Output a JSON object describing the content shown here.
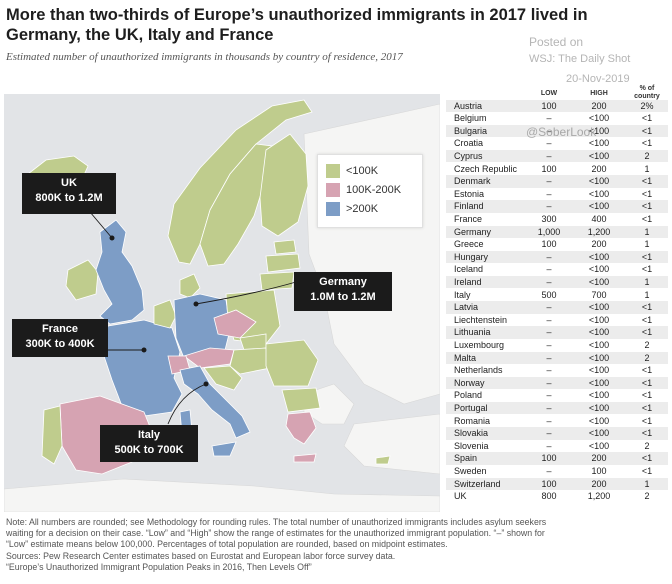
{
  "title": "More than two-thirds of Europe’s unauthorized immigrants in 2017 lived in Germany, the UK, Italy and France",
  "subtitle": "Estimated number of unauthorized immigrants in thousands by country of residence, 2017",
  "watermark": {
    "posted": "Posted on",
    "source": "WSJ: The Daily Shot",
    "date": "20-Nov-2019",
    "user": "@SoberLook"
  },
  "legend": {
    "items": [
      {
        "label": "<100K",
        "color": "#bfcc8d"
      },
      {
        "label": "100K-200K",
        "color": "#d6a3b2"
      },
      {
        "label": ">200K",
        "color": "#7d9dc6"
      }
    ]
  },
  "callouts": {
    "uk": {
      "name": "UK",
      "range": "800K to 1.2M"
    },
    "germany": {
      "name": "Germany",
      "range": "1.0M to 1.2M"
    },
    "france": {
      "name": "France",
      "range": "300K to 400K"
    },
    "italy": {
      "name": "Italy",
      "range": "500K to 700K"
    }
  },
  "table": {
    "headers": {
      "low": "LOW",
      "high": "HIGH",
      "pct": "% of country pop."
    },
    "rows": [
      {
        "country": "Austria",
        "low": "100",
        "high": "200",
        "pct": "2%"
      },
      {
        "country": "Belgium",
        "low": "–",
        "high": "<100",
        "pct": "<1"
      },
      {
        "country": "Bulgaria",
        "low": "–",
        "high": "<100",
        "pct": "<1"
      },
      {
        "country": "Croatia",
        "low": "–",
        "high": "<100",
        "pct": "<1"
      },
      {
        "country": "Cyprus",
        "low": "–",
        "high": "<100",
        "pct": "2"
      },
      {
        "country": "Czech Republic",
        "low": "100",
        "high": "200",
        "pct": "1"
      },
      {
        "country": "Denmark",
        "low": "–",
        "high": "<100",
        "pct": "<1"
      },
      {
        "country": "Estonia",
        "low": "–",
        "high": "<100",
        "pct": "<1"
      },
      {
        "country": "Finland",
        "low": "–",
        "high": "<100",
        "pct": "<1"
      },
      {
        "country": "France",
        "low": "300",
        "high": "400",
        "pct": "<1"
      },
      {
        "country": "Germany",
        "low": "1,000",
        "high": "1,200",
        "pct": "1"
      },
      {
        "country": "Greece",
        "low": "100",
        "high": "200",
        "pct": "1"
      },
      {
        "country": "Hungary",
        "low": "–",
        "high": "<100",
        "pct": "<1"
      },
      {
        "country": "Iceland",
        "low": "–",
        "high": "<100",
        "pct": "<1"
      },
      {
        "country": "Ireland",
        "low": "–",
        "high": "<100",
        "pct": "1"
      },
      {
        "country": "Italy",
        "low": "500",
        "high": "700",
        "pct": "1"
      },
      {
        "country": "Latvia",
        "low": "–",
        "high": "<100",
        "pct": "<1"
      },
      {
        "country": "Liechtenstein",
        "low": "–",
        "high": "<100",
        "pct": "<1"
      },
      {
        "country": "Lithuania",
        "low": "–",
        "high": "<100",
        "pct": "<1"
      },
      {
        "country": "Luxembourg",
        "low": "–",
        "high": "<100",
        "pct": "2"
      },
      {
        "country": "Malta",
        "low": "–",
        "high": "<100",
        "pct": "2"
      },
      {
        "country": "Netherlands",
        "low": "–",
        "high": "<100",
        "pct": "<1"
      },
      {
        "country": "Norway",
        "low": "–",
        "high": "<100",
        "pct": "<1"
      },
      {
        "country": "Poland",
        "low": "–",
        "high": "<100",
        "pct": "<1"
      },
      {
        "country": "Portugal",
        "low": "–",
        "high": "<100",
        "pct": "<1"
      },
      {
        "country": "Romania",
        "low": "–",
        "high": "<100",
        "pct": "<1"
      },
      {
        "country": "Slovakia",
        "low": "–",
        "high": "<100",
        "pct": "<1"
      },
      {
        "country": "Slovenia",
        "low": "–",
        "high": "<100",
        "pct": "2"
      },
      {
        "country": "Spain",
        "low": "100",
        "high": "200",
        "pct": "<1"
      },
      {
        "country": "Sweden",
        "low": "–",
        "high": "100",
        "pct": "<1"
      },
      {
        "country": "Switzerland",
        "low": "100",
        "high": "200",
        "pct": "1"
      },
      {
        "country": "UK",
        "low": "800",
        "high": "1,200",
        "pct": "2"
      }
    ]
  },
  "notes": [
    "Note: All numbers are rounded; see Methodology for rounding rules. The total number of unauthorized immigrants includes asylum seekers",
    "waiting for a decision on their case. “Low” and “High” show the range of estimates for the unauthorized immigrant population. “–” shown for",
    "“Low” estimate means below 100,000. Percentages of total population are rounded, based on midpoint estimates.",
    "Sources: Pew Research Center estimates based on Eurostat and European labor force survey data.",
    "“Europe’s Unauthorized Immigrant Population Peaks in 2016, Then Levels Off”"
  ],
  "colors": {
    "sea": "#e2e4e7",
    "non_eu_land": "#f5f5f4",
    "low": "#bfcc8d",
    "mid": "#d6a3b2",
    "high": "#7d9dc6",
    "callout_bg": "#1b1b1b"
  }
}
